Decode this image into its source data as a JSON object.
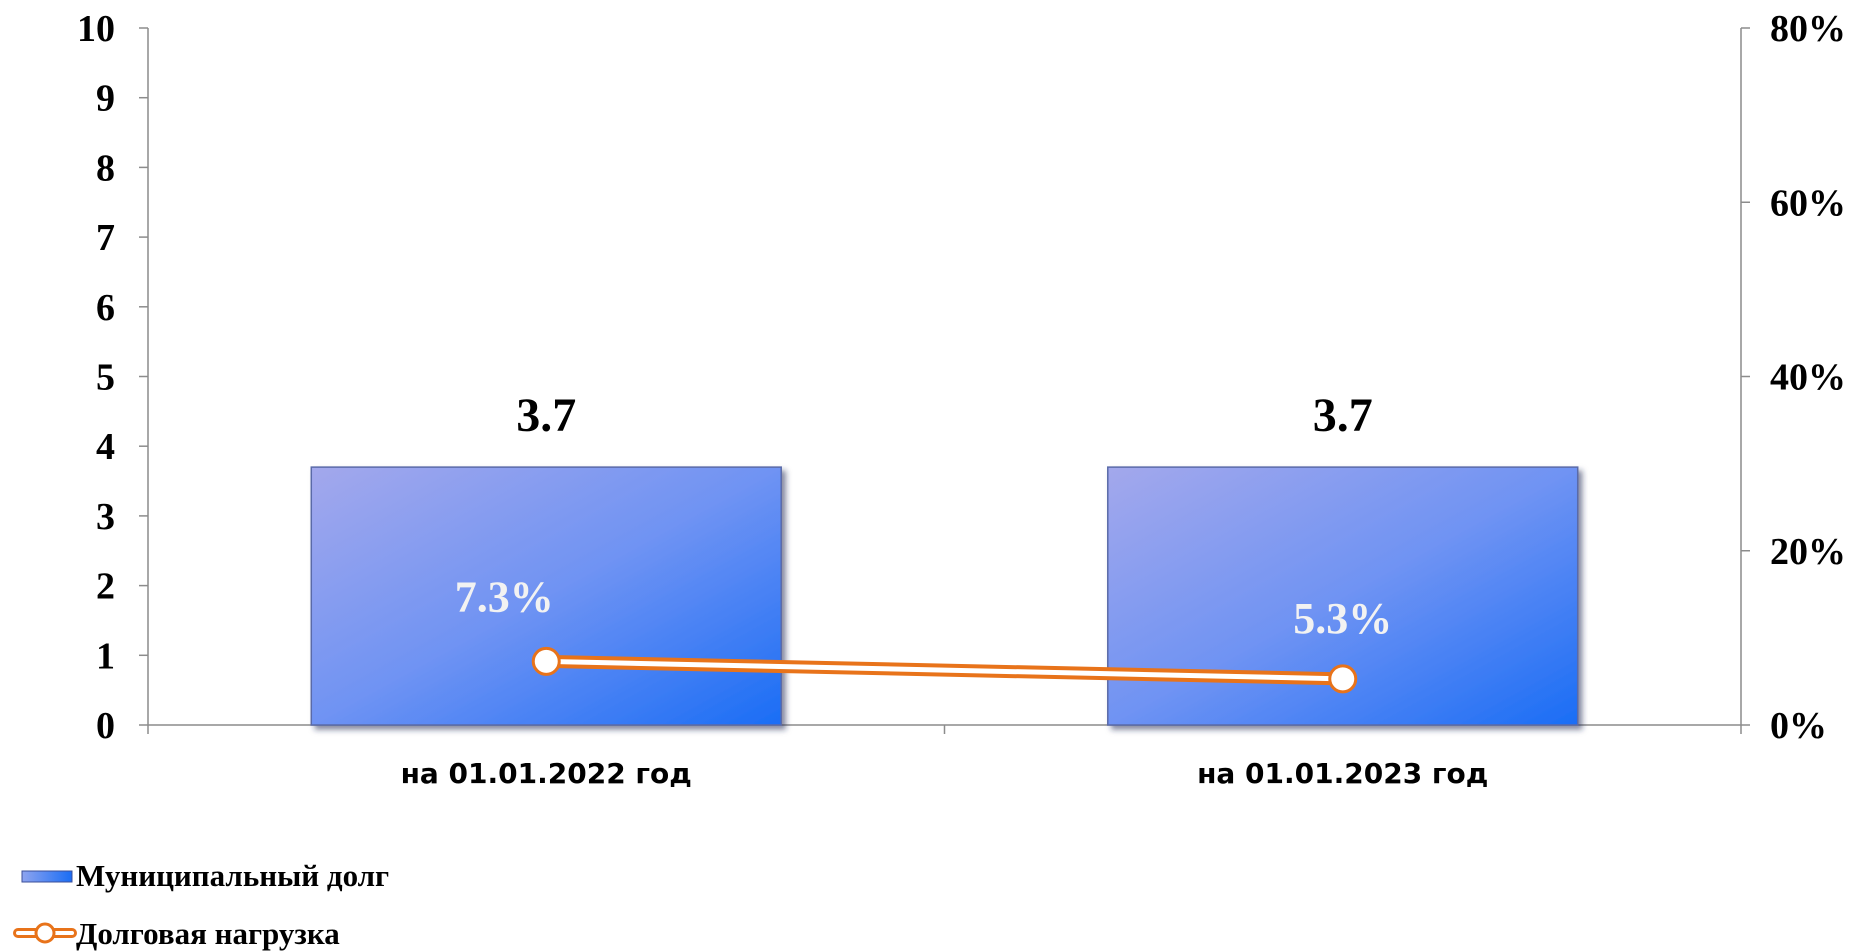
{
  "chart_data": {
    "type": "bar",
    "categories": [
      "на 01.01.2022 год",
      "на 01.01.2023 год"
    ],
    "series": [
      {
        "name": "Муниципальный долг",
        "kind": "bar",
        "axis": "left",
        "values": [
          3.7,
          3.7
        ],
        "data_labels": [
          "3.7",
          "3.7"
        ],
        "color": "#3e7bf0"
      },
      {
        "name": "Долговая нагрузка",
        "kind": "line",
        "axis": "right",
        "values": [
          7.3,
          5.3
        ],
        "data_labels": [
          "7.3%",
          "5.3%"
        ],
        "color": "#e8731a"
      }
    ],
    "y_left": {
      "min": 0,
      "max": 10,
      "ticks": [
        0,
        1,
        2,
        3,
        4,
        5,
        6,
        7,
        8,
        9,
        10
      ],
      "tick_labels": [
        "0",
        "1",
        "2",
        "3",
        "4",
        "5",
        "6",
        "7",
        "8",
        "9",
        "10"
      ]
    },
    "y_right": {
      "min": 0,
      "max": 80,
      "ticks": [
        0,
        20,
        40,
        60,
        80
      ],
      "tick_labels": [
        "0%",
        "20%",
        "40%",
        "60%",
        "80%"
      ]
    },
    "grid": false,
    "legend_position": "bottom-left"
  }
}
